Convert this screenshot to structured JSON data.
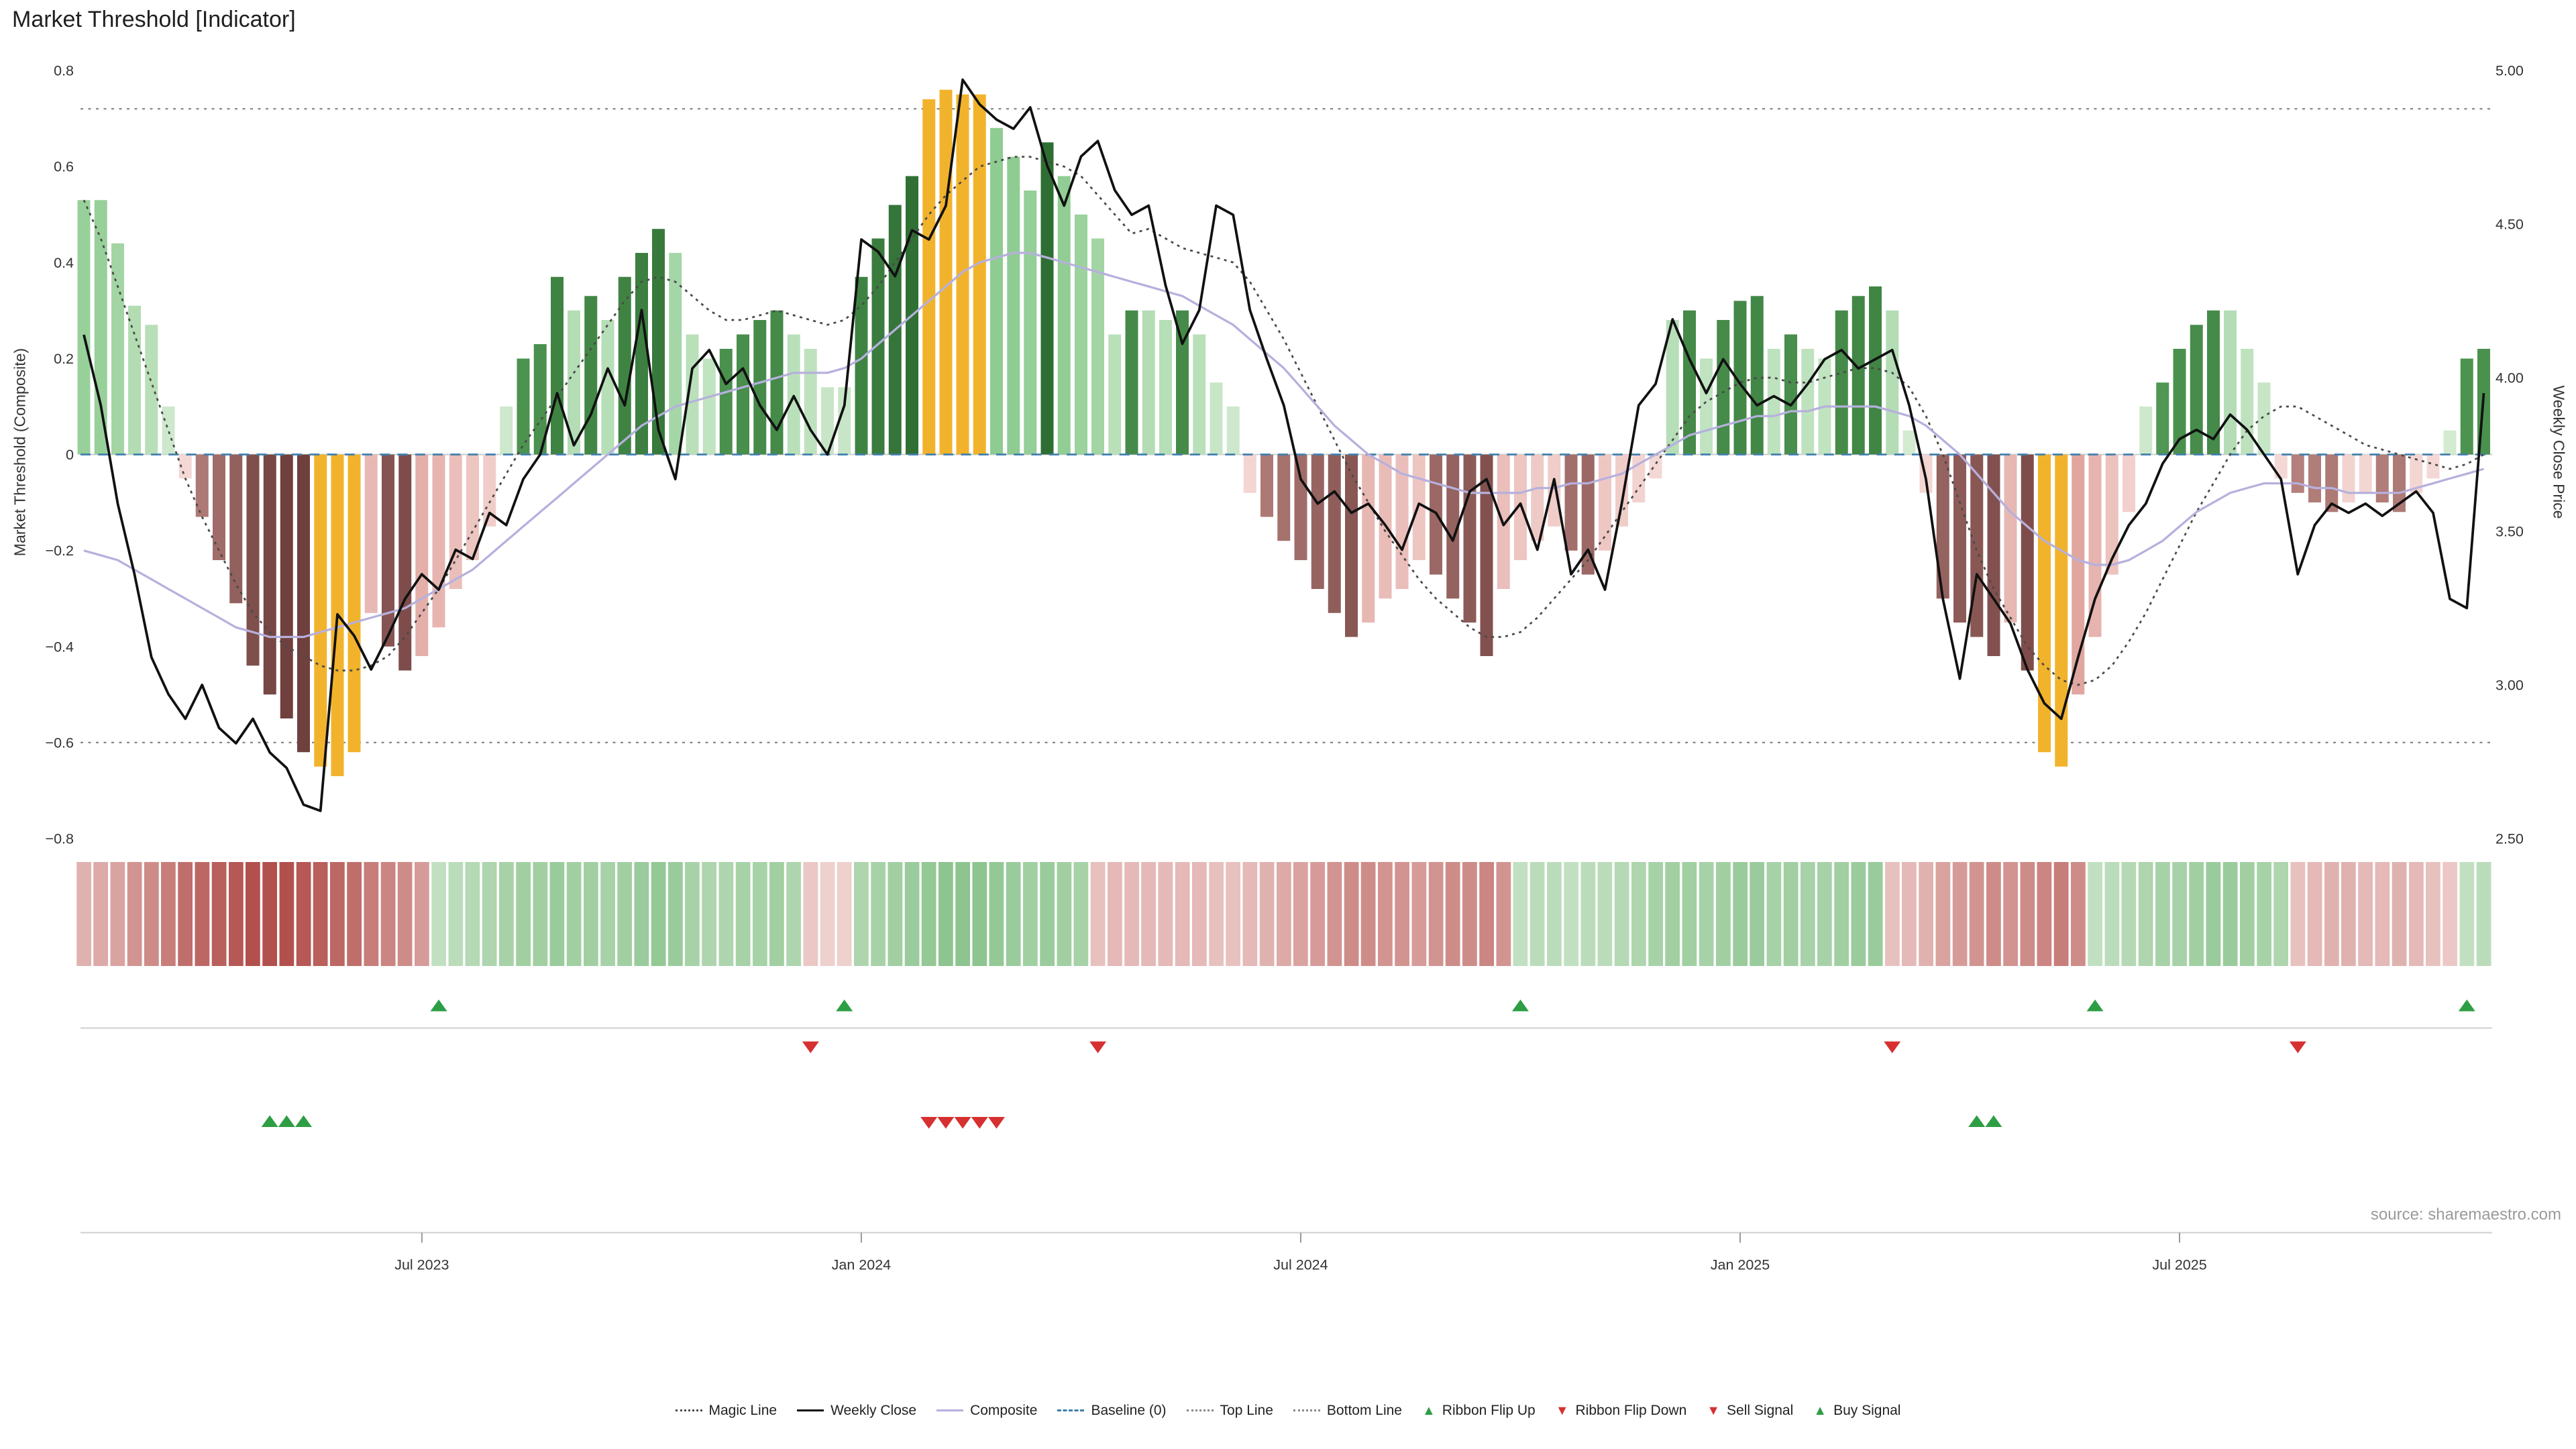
{
  "title": "Market Threshold [Indicator]",
  "source": "source: sharemaestro.com",
  "axes": {
    "left_label": "Market Threshold (Composite)",
    "right_label": "Weekly Close Price",
    "left_ticks": [
      {
        "v": 0.8,
        "label": "0.8"
      },
      {
        "v": 0.6,
        "label": "0.6"
      },
      {
        "v": 0.4,
        "label": "0.4"
      },
      {
        "v": 0.2,
        "label": "0.2"
      },
      {
        "v": 0.0,
        "label": "0"
      },
      {
        "v": -0.2,
        "label": "−0.2"
      },
      {
        "v": -0.4,
        "label": "−0.4"
      },
      {
        "v": -0.6,
        "label": "−0.6"
      },
      {
        "v": -0.8,
        "label": "−0.8"
      }
    ],
    "right_ticks": [
      {
        "price": 5.0,
        "label": "5.00"
      },
      {
        "price": 4.5,
        "label": "4.50"
      },
      {
        "price": 4.0,
        "label": "4.00"
      },
      {
        "price": 3.5,
        "label": "3.50"
      },
      {
        "price": 3.0,
        "label": "3.00"
      },
      {
        "price": 2.5,
        "label": "2.50"
      }
    ],
    "x_ticks": [
      {
        "i": 20,
        "label": "Jul 2023"
      },
      {
        "i": 46,
        "label": "Jan 2024"
      },
      {
        "i": 72,
        "label": "Jul 2024"
      },
      {
        "i": 98,
        "label": "Jan 2025"
      },
      {
        "i": 124,
        "label": "Jul 2025"
      }
    ]
  },
  "chart_data": {
    "type": "bar",
    "subtype": "composite indicator: threshold histogram + weekly close line + composite line + magic line + sentiment ribbon + signals",
    "frequency": "weekly",
    "n_weeks": 143,
    "left_axis_range": [
      -0.8,
      0.8
    ],
    "right_axis_range": [
      2.5,
      5.0
    ],
    "top_line": 0.72,
    "bottom_line": -0.6,
    "baseline": 0,
    "threshold_bars": [
      0.53,
      0.53,
      0.44,
      0.31,
      0.27,
      0.1,
      -0.05,
      -0.13,
      -0.22,
      -0.31,
      -0.44,
      -0.5,
      -0.55,
      -0.62,
      -0.65,
      -0.67,
      -0.62,
      -0.33,
      -0.4,
      -0.45,
      -0.42,
      -0.36,
      -0.28,
      -0.22,
      -0.15,
      0.1,
      0.2,
      0.23,
      0.37,
      0.3,
      0.33,
      0.28,
      0.37,
      0.42,
      0.47,
      0.42,
      0.25,
      0.2,
      0.22,
      0.25,
      0.28,
      0.3,
      0.25,
      0.22,
      0.14,
      0.14,
      0.37,
      0.45,
      0.52,
      0.58,
      0.74,
      0.76,
      0.75,
      0.75,
      0.68,
      0.62,
      0.55,
      0.65,
      0.58,
      0.5,
      0.45,
      0.25,
      0.3,
      0.3,
      0.28,
      0.3,
      0.25,
      0.15,
      0.1,
      -0.08,
      -0.13,
      -0.18,
      -0.22,
      -0.28,
      -0.33,
      -0.38,
      -0.35,
      -0.3,
      -0.28,
      -0.22,
      -0.25,
      -0.3,
      -0.35,
      -0.42,
      -0.28,
      -0.22,
      -0.18,
      -0.15,
      -0.2,
      -0.25,
      -0.2,
      -0.15,
      -0.1,
      -0.05,
      0.28,
      0.3,
      0.2,
      0.28,
      0.32,
      0.33,
      0.22,
      0.25,
      0.22,
      0.2,
      0.3,
      0.33,
      0.35,
      0.3,
      0.05,
      -0.08,
      -0.3,
      -0.35,
      -0.38,
      -0.42,
      -0.35,
      -0.45,
      -0.62,
      -0.65,
      -0.5,
      -0.38,
      -0.25,
      -0.12,
      0.1,
      0.15,
      0.22,
      0.27,
      0.3,
      0.3,
      0.22,
      0.15,
      -0.05,
      -0.08,
      -0.1,
      -0.12,
      -0.1,
      -0.08,
      -0.1,
      -0.12,
      -0.08,
      -0.05,
      0.05,
      0.2,
      0.22
    ],
    "highlight_bar_indices": [
      14,
      15,
      16,
      50,
      51,
      52,
      53,
      116,
      117
    ],
    "weekly_close": [
      4.14,
      3.91,
      3.59,
      3.36,
      3.09,
      2.97,
      2.89,
      3.0,
      2.86,
      2.81,
      2.89,
      2.78,
      2.73,
      2.61,
      2.59,
      3.23,
      3.16,
      3.05,
      3.16,
      3.28,
      3.36,
      3.31,
      3.44,
      3.41,
      3.56,
      3.52,
      3.67,
      3.75,
      3.95,
      3.78,
      3.88,
      4.03,
      3.91,
      4.22,
      3.83,
      3.67,
      4.03,
      4.09,
      3.98,
      4.03,
      3.91,
      3.83,
      3.94,
      3.83,
      3.75,
      3.91,
      4.45,
      4.41,
      4.33,
      4.48,
      4.45,
      4.56,
      4.97,
      4.89,
      4.84,
      4.81,
      4.88,
      4.69,
      4.56,
      4.72,
      4.77,
      4.61,
      4.53,
      4.56,
      4.3,
      4.11,
      4.22,
      4.56,
      4.53,
      4.22,
      4.06,
      3.91,
      3.67,
      3.59,
      3.63,
      3.56,
      3.59,
      3.52,
      3.44,
      3.59,
      3.56,
      3.47,
      3.63,
      3.67,
      3.52,
      3.59,
      3.44,
      3.67,
      3.36,
      3.44,
      3.31,
      3.59,
      3.91,
      3.98,
      4.19,
      4.06,
      3.95,
      4.06,
      3.98,
      3.91,
      3.94,
      3.91,
      3.98,
      4.06,
      4.09,
      4.03,
      4.06,
      4.09,
      3.91,
      3.67,
      3.28,
      3.02,
      3.36,
      3.28,
      3.2,
      3.05,
      2.94,
      2.89,
      3.09,
      3.28,
      3.41,
      3.52,
      3.59,
      3.72,
      3.8,
      3.83,
      3.8,
      3.88,
      3.83,
      3.75,
      3.67,
      3.36,
      3.52,
      3.59,
      3.56,
      3.59,
      3.55,
      3.59,
      3.63,
      3.56,
      3.28,
      3.25,
      3.95
    ],
    "composite_line": [
      -0.2,
      -0.21,
      -0.22,
      -0.24,
      -0.26,
      -0.28,
      -0.3,
      -0.32,
      -0.34,
      -0.36,
      -0.37,
      -0.38,
      -0.38,
      -0.38,
      -0.37,
      -0.36,
      -0.35,
      -0.34,
      -0.33,
      -0.32,
      -0.3,
      -0.28,
      -0.26,
      -0.24,
      -0.21,
      -0.18,
      -0.15,
      -0.12,
      -0.09,
      -0.06,
      -0.03,
      0.0,
      0.03,
      0.06,
      0.08,
      0.1,
      0.11,
      0.12,
      0.13,
      0.14,
      0.15,
      0.16,
      0.17,
      0.17,
      0.17,
      0.18,
      0.2,
      0.23,
      0.26,
      0.29,
      0.32,
      0.35,
      0.38,
      0.4,
      0.41,
      0.42,
      0.42,
      0.41,
      0.4,
      0.39,
      0.38,
      0.37,
      0.36,
      0.35,
      0.34,
      0.33,
      0.31,
      0.29,
      0.27,
      0.24,
      0.21,
      0.18,
      0.14,
      0.1,
      0.06,
      0.03,
      0.0,
      -0.02,
      -0.04,
      -0.05,
      -0.06,
      -0.07,
      -0.08,
      -0.08,
      -0.08,
      -0.08,
      -0.07,
      -0.07,
      -0.06,
      -0.06,
      -0.05,
      -0.04,
      -0.02,
      0.0,
      0.02,
      0.04,
      0.05,
      0.06,
      0.07,
      0.08,
      0.08,
      0.09,
      0.09,
      0.1,
      0.1,
      0.1,
      0.1,
      0.09,
      0.08,
      0.06,
      0.03,
      0.0,
      -0.04,
      -0.08,
      -0.12,
      -0.15,
      -0.18,
      -0.2,
      -0.22,
      -0.23,
      -0.23,
      -0.22,
      -0.2,
      -0.18,
      -0.15,
      -0.12,
      -0.1,
      -0.08,
      -0.07,
      -0.06,
      -0.06,
      -0.06,
      -0.07,
      -0.07,
      -0.08,
      -0.08,
      -0.08,
      -0.08,
      -0.07,
      -0.06,
      -0.05,
      -0.04,
      -0.03
    ],
    "magic_line": [
      0.53,
      0.45,
      0.35,
      0.25,
      0.15,
      0.05,
      -0.05,
      -0.13,
      -0.2,
      -0.27,
      -0.33,
      -0.37,
      -0.4,
      -0.42,
      -0.44,
      -0.45,
      -0.45,
      -0.44,
      -0.42,
      -0.38,
      -0.33,
      -0.28,
      -0.22,
      -0.16,
      -0.1,
      -0.04,
      0.02,
      0.07,
      0.12,
      0.17,
      0.22,
      0.27,
      0.32,
      0.36,
      0.37,
      0.36,
      0.33,
      0.3,
      0.28,
      0.28,
      0.29,
      0.3,
      0.29,
      0.28,
      0.27,
      0.28,
      0.31,
      0.35,
      0.4,
      0.45,
      0.5,
      0.54,
      0.57,
      0.6,
      0.61,
      0.62,
      0.62,
      0.61,
      0.6,
      0.58,
      0.54,
      0.5,
      0.46,
      0.47,
      0.45,
      0.43,
      0.42,
      0.41,
      0.4,
      0.36,
      0.3,
      0.24,
      0.17,
      0.1,
      0.03,
      -0.04,
      -0.1,
      -0.16,
      -0.21,
      -0.26,
      -0.3,
      -0.33,
      -0.36,
      -0.38,
      -0.38,
      -0.37,
      -0.34,
      -0.3,
      -0.26,
      -0.22,
      -0.17,
      -0.12,
      -0.07,
      -0.02,
      0.03,
      0.08,
      0.11,
      0.13,
      0.15,
      0.16,
      0.16,
      0.15,
      0.15,
      0.16,
      0.17,
      0.18,
      0.18,
      0.17,
      0.14,
      0.08,
      0.0,
      -0.1,
      -0.2,
      -0.28,
      -0.34,
      -0.4,
      -0.44,
      -0.47,
      -0.48,
      -0.47,
      -0.44,
      -0.39,
      -0.33,
      -0.26,
      -0.19,
      -0.12,
      -0.06,
      0.0,
      0.05,
      0.08,
      0.1,
      0.1,
      0.08,
      0.06,
      0.04,
      0.02,
      0.01,
      0.0,
      -0.01,
      -0.02,
      -0.03,
      -0.02,
      0.0
    ],
    "ribbon": [
      -0.35,
      -0.4,
      -0.45,
      -0.55,
      -0.6,
      -0.7,
      -0.8,
      -0.85,
      -0.9,
      -0.95,
      -1.0,
      -1.0,
      -1.0,
      -0.95,
      -0.9,
      -0.85,
      -0.8,
      -0.7,
      -0.65,
      -0.6,
      -0.5,
      0.3,
      0.35,
      0.4,
      0.45,
      0.5,
      0.55,
      0.55,
      0.6,
      0.55,
      0.55,
      0.5,
      0.55,
      0.6,
      0.65,
      0.6,
      0.5,
      0.45,
      0.45,
      0.5,
      0.5,
      0.55,
      0.45,
      -0.2,
      -0.15,
      -0.15,
      0.45,
      0.5,
      0.55,
      0.6,
      0.65,
      0.7,
      0.7,
      0.7,
      0.65,
      0.6,
      0.55,
      0.6,
      0.55,
      0.5,
      -0.25,
      -0.3,
      -0.3,
      -0.3,
      -0.3,
      -0.3,
      -0.3,
      -0.25,
      -0.25,
      -0.3,
      -0.35,
      -0.4,
      -0.45,
      -0.5,
      -0.55,
      -0.6,
      -0.6,
      -0.55,
      -0.55,
      -0.5,
      -0.55,
      -0.6,
      -0.6,
      -0.65,
      -0.55,
      0.3,
      0.35,
      0.35,
      0.3,
      0.35,
      0.35,
      0.4,
      0.45,
      0.5,
      0.55,
      0.55,
      0.5,
      0.55,
      0.6,
      0.6,
      0.5,
      0.55,
      0.5,
      0.5,
      0.55,
      0.6,
      0.6,
      -0.25,
      -0.3,
      -0.35,
      -0.45,
      -0.5,
      -0.55,
      -0.6,
      -0.55,
      -0.6,
      -0.65,
      -0.7,
      -0.6,
      0.3,
      0.35,
      0.4,
      0.45,
      0.5,
      0.5,
      0.55,
      0.6,
      0.6,
      0.55,
      0.5,
      0.45,
      -0.25,
      -0.3,
      -0.35,
      -0.35,
      -0.3,
      -0.3,
      -0.35,
      -0.3,
      -0.25,
      -0.2,
      0.3,
      0.35
    ],
    "signals": {
      "ribbon_flip_up": [
        21,
        45,
        85,
        119,
        141
      ],
      "ribbon_flip_down": [
        43,
        60,
        107,
        131
      ],
      "sell": [
        50,
        51,
        52,
        53,
        54
      ],
      "buy": [
        11,
        12,
        13,
        112,
        113
      ]
    }
  },
  "legend": [
    {
      "label": "Magic Line",
      "marker": "dotted-line",
      "color": "#4a4a4a"
    },
    {
      "label": "Weekly Close",
      "marker": "solid-line",
      "color": "#111111"
    },
    {
      "label": "Composite",
      "marker": "solid-line",
      "color": "#b6b0dd"
    },
    {
      "label": "Baseline (0)",
      "marker": "dashed-line",
      "color": "#3f7fae"
    },
    {
      "label": "Top Line",
      "marker": "dotted-line",
      "color": "#888888"
    },
    {
      "label": "Bottom Line",
      "marker": "dotted-line",
      "color": "#888888"
    },
    {
      "label": "Ribbon Flip Up",
      "marker": "triangle-up",
      "color": "#2e9e44"
    },
    {
      "label": "Ribbon Flip Down",
      "marker": "triangle-down",
      "color": "#d63031"
    },
    {
      "label": "Sell Signal",
      "marker": "triangle-down",
      "color": "#d63031"
    },
    {
      "label": "Buy Signal",
      "marker": "triangle-up",
      "color": "#2e9e44"
    }
  ],
  "colors": {
    "bar_pos_rising_from": "#5aa55e",
    "bar_pos_rising_to": "#2f6e33",
    "bar_pos_easing_from": "#d9eed7",
    "bar_pos_easing_to": "#8fcc92",
    "bar_neg_deepening_from": "#c08a86",
    "bar_neg_deepening_to": "#6f403e",
    "bar_neg_easing_from": "#f6dedb",
    "bar_neg_easing_to": "#dfa09a",
    "bar_highlight": "#f2b32c",
    "ribbon_pos_light": "#e8f4e6",
    "ribbon_pos_dark": "#66b06a",
    "ribbon_neg_light": "#f9e6e4",
    "ribbon_neg_dark": "#b2504d",
    "weekly_close": "#111111",
    "composite": "#b6b0dd",
    "magic": "#4a4a4a",
    "baseline": "#3f7fae",
    "bands": "#888888",
    "zero_line": "#c8c8c8",
    "grid": "#cfcfcf",
    "signal_up": "#2e9e44",
    "signal_down": "#d63031",
    "tick_text": "#333333"
  }
}
